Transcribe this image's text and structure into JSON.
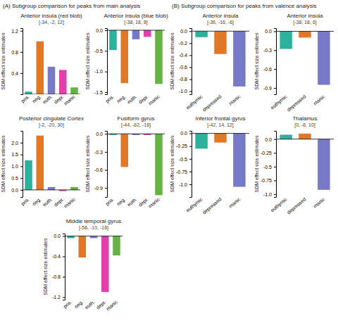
{
  "annotations": [
    "(A) Subgroup comparison for peaks from main analysis",
    "(B) Subgroup comparison for peaks from valence analysis"
  ],
  "chart_data": [
    {
      "type": "bar",
      "title": "Anterior insula (red blob)",
      "subtitle": "[-34, -2, 12]",
      "y_label": "SDM effect size estimates",
      "categories": [
        "pos.",
        "neg.",
        "euth.",
        "depr.",
        "manic"
      ],
      "values": [
        0.05,
        1.0,
        0.52,
        0.46,
        0.13
      ],
      "colors": [
        "#2db09c",
        "#e07828",
        "#7878c8",
        "#e040a8",
        "#68b048"
      ],
      "ylim": [
        0,
        1.25
      ],
      "yticks": [
        0.4,
        0.8,
        1.2
      ]
    },
    {
      "type": "bar",
      "title": "Anterior insula (blue blob)",
      "subtitle": "[-38, 18, 8]",
      "y_label": "SDM effect size estimates",
      "categories": [
        "pos.",
        "neg.",
        "euth.",
        "depr.",
        "manic"
      ],
      "values": [
        -0.48,
        -1.28,
        -0.22,
        -0.16,
        -1.3
      ],
      "colors": [
        "#2db09c",
        "#e07828",
        "#7878c8",
        "#e040a8",
        "#68b048"
      ],
      "ylim": [
        -1.55,
        0.05
      ],
      "yticks": [
        -1.5,
        {
          "value": -1.0,
          "label": "-1.0"
        },
        -0.5,
        {
          "value": 0.0,
          "label": "0.0"
        }
      ]
    },
    {
      "type": "bar",
      "title": "Anterior insula",
      "subtitle": "[-36, -16, -6]",
      "y_label": "SDM effect size estimates",
      "categories": [
        "euthymic",
        "depressed",
        "manic"
      ],
      "values": [
        -0.1,
        -0.38,
        -0.92
      ],
      "colors": [
        "#2db09c",
        "#e07828",
        "#7878c8"
      ],
      "ylim": [
        -1.05,
        0.05
      ],
      "yticks": [
        {
          "value": -1.0,
          "label": "-1.0"
        },
        -0.8,
        -0.6,
        -0.4,
        -0.2,
        {
          "value": 0.0,
          "label": "0.0"
        }
      ]
    },
    {
      "type": "bar",
      "title": "Anterior insula",
      "subtitle": "[-38, 18, 6]",
      "y_label": "SDM effect size estimates",
      "categories": [
        "euthymic",
        "depressed",
        "manic"
      ],
      "values": [
        -0.28,
        -0.1,
        -0.85
      ],
      "colors": [
        "#2db09c",
        "#e07828",
        "#7878c8"
      ],
      "ylim": [
        -1.0,
        0.05
      ],
      "yticks": [
        -0.9,
        -0.6,
        -0.3,
        {
          "value": 0.0,
          "label": "0.0"
        }
      ]
    },
    {
      "type": "bar",
      "title": "Posterior cingulate Cortex",
      "subtitle": "[-2, -20, 30]",
      "y_label": "SDM effect size estimates",
      "categories": [
        "pos.",
        "neg.",
        "euth.",
        "depr.",
        "manic"
      ],
      "values": [
        1.25,
        2.3,
        0.12,
        -0.05,
        0.12
      ],
      "colors": [
        "#2db09c",
        "#e07828",
        "#7878c8",
        "#e040a8",
        "#68b048"
      ],
      "ylim": [
        -0.3,
        2.5
      ],
      "yticks": [
        {
          "value": 0.0,
          "label": "0.0"
        },
        0.5,
        {
          "value": 1.0,
          "label": "1.0"
        },
        1.5,
        {
          "value": 2.0,
          "label": "2.0"
        }
      ]
    },
    {
      "type": "bar",
      "title": "Fusiform gyrus",
      "subtitle": "[-44, -62, -16]",
      "y_label": "SDM effect size estimates",
      "categories": [
        "pos.",
        "neg.",
        "euth.",
        "depr.",
        "manic"
      ],
      "values": [
        -0.02,
        -0.55,
        -0.02,
        -0.02,
        -1.02
      ],
      "colors": [
        "#2db09c",
        "#e07828",
        "#7878c8",
        "#e040a8",
        "#68b048"
      ],
      "ylim": [
        -1.05,
        0.05
      ],
      "yticks": [
        -0.9,
        -0.6,
        -0.3,
        {
          "value": 0.0,
          "label": "0.0"
        }
      ]
    },
    {
      "type": "bar",
      "title": "Inferior frontal gyrus",
      "subtitle": "[-42, 14, 12]",
      "y_label": "SDM effect size estimates",
      "categories": [
        "euthymic",
        "depressed",
        "manic"
      ],
      "values": [
        -0.3,
        -0.18,
        -1.05
      ],
      "colors": [
        "#2db09c",
        "#e07828",
        "#7878c8"
      ],
      "ylim": [
        -1.25,
        0.05
      ],
      "yticks": [
        {
          "value": -1.0,
          "label": "-1.0"
        },
        -0.75,
        -0.5,
        -0.25,
        {
          "value": 0.0,
          "label": "0.0"
        }
      ]
    },
    {
      "type": "bar",
      "title": "Thalamus",
      "subtitle": "[0, -6, 10]",
      "y_label": "SDM effect size estimates",
      "categories": [
        "euthymic",
        "depressed",
        "manic"
      ],
      "values": [
        0.08,
        0.1,
        -0.92
      ],
      "colors": [
        "#2db09c",
        "#e07828",
        "#7878c8"
      ],
      "ylim": [
        -1.05,
        0.15
      ],
      "yticks": [
        {
          "value": -1.0,
          "label": "-1.0"
        },
        -0.75,
        -0.5,
        -0.25,
        {
          "value": 0.0,
          "label": "0.0"
        }
      ]
    },
    {
      "type": "bar",
      "title": "Middle temporal gyrus",
      "subtitle": "[-56, -10, -16]",
      "y_label": "SDM effect size estimates",
      "categories": [
        "pos.",
        "neg.",
        "euth.",
        "depr.",
        "manic"
      ],
      "values": [
        -0.04,
        -0.42,
        -0.04,
        -1.1,
        -0.38
      ],
      "colors": [
        "#2db09c",
        "#e07828",
        "#7878c8",
        "#e040a8",
        "#68b048"
      ],
      "ylim": [
        -1.25,
        0.05
      ],
      "yticks": [
        -1.2,
        -0.8,
        -0.4,
        {
          "value": 0.0,
          "label": "0.0"
        }
      ]
    }
  ]
}
